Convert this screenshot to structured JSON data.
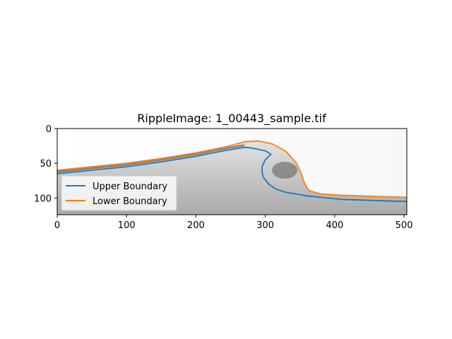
{
  "chart_data": {
    "type": "line",
    "title": "RippleImage: 1_00443_sample.tif",
    "xlabel": "",
    "ylabel": "",
    "xlim": [
      0,
      504
    ],
    "ylim": [
      124,
      0
    ],
    "y_inverted": true,
    "x_ticks": [
      0,
      100,
      200,
      300,
      400,
      500
    ],
    "y_ticks": [
      0,
      50,
      100
    ],
    "grid": false,
    "legend_position": "lower-left",
    "background": "grayscale image",
    "series": [
      {
        "name": "Upper Boundary",
        "color": "#1f77b4",
        "x": [
          0,
          20,
          50,
          100,
          150,
          200,
          240,
          270,
          280,
          300,
          308,
          300,
          296,
          295,
          297,
          305,
          315,
          330,
          350,
          360,
          380,
          410,
          440,
          470,
          504
        ],
        "y": [
          65,
          63,
          60,
          55,
          48,
          40,
          32,
          27,
          28,
          32,
          37,
          45,
          53,
          60,
          70,
          80,
          87,
          92,
          95,
          97,
          99,
          102,
          103,
          104,
          105
        ]
      },
      {
        "name": "Lower Boundary",
        "color": "#ff7f0e",
        "x": [
          0,
          20,
          50,
          100,
          150,
          200,
          240,
          270,
          290,
          310,
          330,
          345,
          352,
          355,
          360,
          362,
          365,
          380,
          410,
          440,
          470,
          504
        ],
        "y": [
          60,
          58,
          55,
          50,
          43,
          35,
          27,
          19,
          18,
          22,
          33,
          50,
          65,
          75,
          85,
          88,
          90,
          94,
          96,
          97,
          98,
          99
        ]
      }
    ]
  }
}
